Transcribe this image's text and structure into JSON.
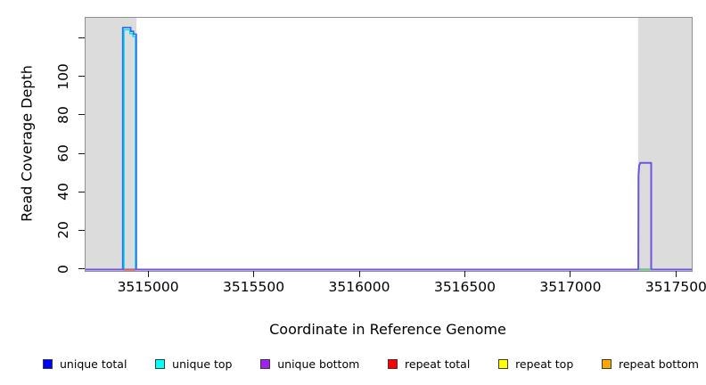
{
  "chart_data": {
    "type": "line",
    "title": "",
    "xlabel": "Coordinate in Reference Genome",
    "ylabel": "Read Coverage Depth",
    "xlim": [
      3514700,
      3517570
    ],
    "ylim": [
      0,
      131
    ],
    "grid": false,
    "legend_position": "bottom",
    "x_ticks": [
      {
        "value": 3515000,
        "label": "3515000"
      },
      {
        "value": 3515500,
        "label": "3515500"
      },
      {
        "value": 3516000,
        "label": "3516000"
      },
      {
        "value": 3516500,
        "label": "3516500"
      },
      {
        "value": 3517000,
        "label": "3517000"
      },
      {
        "value": 3517500,
        "label": "3517500"
      }
    ],
    "y_ticks": [
      {
        "value": 0,
        "label": "0"
      },
      {
        "value": 20,
        "label": "20"
      },
      {
        "value": 40,
        "label": "40"
      },
      {
        "value": 60,
        "label": "60"
      },
      {
        "value": 80,
        "label": "80"
      },
      {
        "value": 100,
        "label": "100"
      },
      {
        "value": 120,
        "label": ""
      }
    ],
    "panel": {
      "background": "#ffffff",
      "border_color": "#8f8f8f",
      "shaded_band_color": "#dcdcdc",
      "tick_color": "#1a1a1a"
    },
    "shaded_regions": [
      {
        "name": "left-shaded-region",
        "x0": 3514700,
        "x1": 3514941
      },
      {
        "name": "right-shaded-region",
        "x0": 3517316,
        "x1": 3517570
      }
    ],
    "series": [
      {
        "name": "unique top",
        "color": "#00e0ef",
        "width": 1.5,
        "points": [
          [
            3514882,
            0
          ],
          [
            3514882,
            124.8
          ],
          [
            3514910,
            124.8
          ],
          [
            3514910,
            122.8
          ],
          [
            3514924,
            122.8
          ],
          [
            3514924,
            121.3
          ],
          [
            3514936,
            121.3
          ],
          [
            3514936,
            0
          ]
        ]
      },
      {
        "name": "unique total",
        "color": "#2f6fec",
        "width": 1.7,
        "points": [
          [
            3514700,
            0
          ],
          [
            3514876,
            0
          ],
          [
            3514876,
            126
          ],
          [
            3514914,
            126
          ],
          [
            3514914,
            124
          ],
          [
            3514927,
            124
          ],
          [
            3514927,
            122.5
          ],
          [
            3514940,
            122.5
          ],
          [
            3514940,
            0
          ],
          [
            3517570,
            0
          ]
        ]
      },
      {
        "name": "unique bottom",
        "color": "#6f52dd",
        "width": 2,
        "points": [
          [
            3514700,
            0
          ],
          [
            3517317,
            0
          ],
          [
            3517318,
            49
          ],
          [
            3517321,
            54
          ],
          [
            3517326,
            55.5
          ],
          [
            3517378,
            55.5
          ],
          [
            3517378,
            0
          ],
          [
            3517570,
            0
          ]
        ]
      }
    ],
    "baseline_overlays": [
      {
        "name": "repeat-total-baseline-segment",
        "color": "#f26b60",
        "width": 1.6,
        "x0": 3514879,
        "x1": 3514939
      },
      {
        "name": "green-overlap-baseline-segment",
        "color": "#86d77e",
        "width": 1.8,
        "x0": 3517320,
        "x1": 3517377
      }
    ]
  },
  "legend": {
    "items": [
      {
        "label": "unique total",
        "color": "#0000ff"
      },
      {
        "label": "unique top",
        "color": "#00ffff"
      },
      {
        "label": "unique bottom",
        "color": "#a020f0"
      },
      {
        "label": "repeat total",
        "color": "#ff0000"
      },
      {
        "label": "repeat top",
        "color": "#ffff00"
      },
      {
        "label": "repeat bottom",
        "color": "#ffa500"
      }
    ]
  }
}
